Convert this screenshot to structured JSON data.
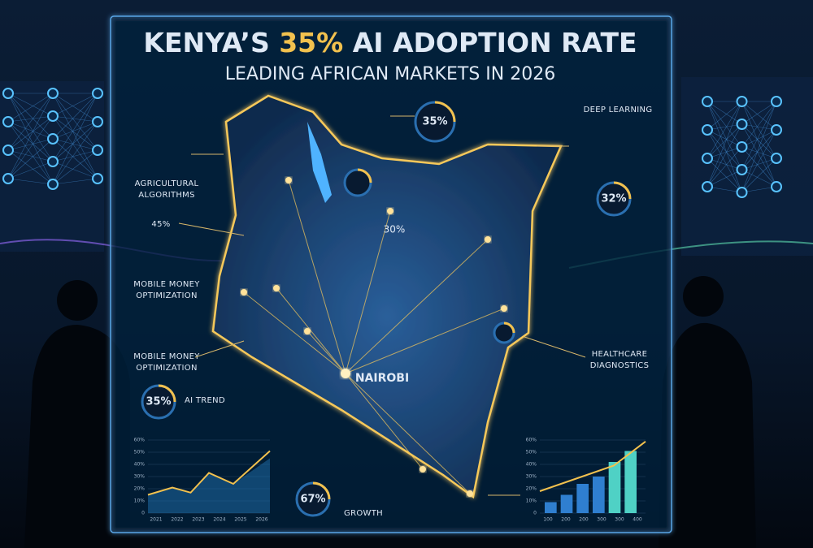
{
  "header": {
    "title_parts": [
      "KENYA’S ",
      "35%",
      " AI ADOPTION RATE"
    ],
    "subtitle": "LEADING AFRICAN MARKETS IN 2026"
  },
  "map": {
    "city": "NAIROBI",
    "center_stat": "30%",
    "top_ring": "35%"
  },
  "left_callouts": {
    "agriculture": [
      "AGRICULTURAL",
      "ALGORITHMS"
    ],
    "stat": "45%",
    "mobile_money_1": [
      "MOBILE MONEY",
      "OPTIMIZATION"
    ],
    "mobile_money_2": [
      "MOBILE MONEY",
      "OPTIMIZATION"
    ],
    "trend_ring": "35%",
    "trend_label": "AI TREND"
  },
  "right_callouts": {
    "deep_learning": "DEEP LEARNING",
    "ring": "32%",
    "healthcare": [
      "HEALTHCARE",
      "DIAGNOSTICS"
    ]
  },
  "bottom": {
    "growth_ring": "67%",
    "growth_label": "GROWTH"
  },
  "left_chart": {
    "yticks": [
      "60%",
      "50%",
      "40%",
      "30%",
      "20%",
      "10%",
      "0"
    ],
    "xticks": [
      "2021",
      "2022",
      "2023",
      "2024",
      "2025",
      "2026"
    ]
  },
  "right_chart": {
    "yticks": [
      "60%",
      "50%",
      "40%",
      "30%",
      "20%",
      "10%",
      "0"
    ],
    "xticks": [
      "100",
      "200",
      "200",
      "300",
      "300",
      "400"
    ]
  }
}
